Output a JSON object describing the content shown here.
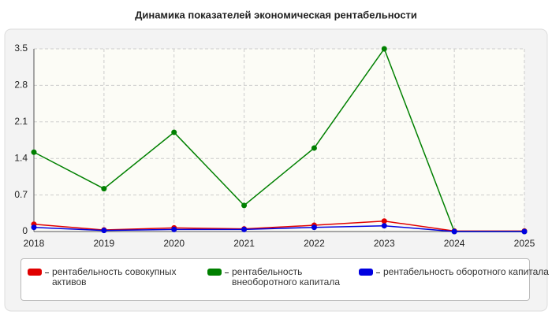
{
  "chart_data": {
    "type": "line",
    "title": "Динамика показателей экономическая рентабельности",
    "categories": [
      "2018",
      "2019",
      "2020",
      "2021",
      "2022",
      "2023",
      "2024",
      "2025"
    ],
    "series": [
      {
        "name": "рентабельность совокупных активов",
        "color": "#e00000",
        "values": [
          0.14,
          0.03,
          0.07,
          0.05,
          0.12,
          0.2,
          0.01,
          0.01
        ]
      },
      {
        "name": "рентабельность внеоборотного капитала",
        "color": "#008000",
        "values": [
          1.52,
          0.82,
          1.9,
          0.5,
          1.6,
          3.5,
          0,
          0
        ]
      },
      {
        "name": "рентабельность оборотного капитала",
        "color": "#0000e0",
        "values": [
          0.08,
          0.02,
          0.04,
          0.04,
          0.08,
          0.11,
          0,
          0
        ]
      }
    ],
    "ylim": [
      0,
      3.5
    ],
    "yticks": [
      0,
      0.7,
      1.4,
      2.1,
      2.8,
      3.5
    ],
    "grid": true
  }
}
